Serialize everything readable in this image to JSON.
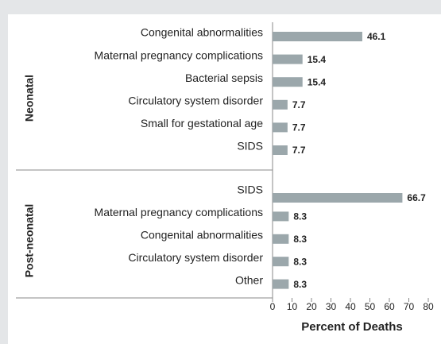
{
  "chart_data": {
    "type": "bar",
    "orientation": "horizontal",
    "groups": [
      {
        "name": "Neonatal",
        "categories": [
          "Congenital abnormalities",
          "Maternal pregnancy complications",
          "Bacterial sepsis",
          "Circulatory system disorder",
          "Small for gestational age",
          "SIDS"
        ],
        "values": [
          46.1,
          15.4,
          15.4,
          7.7,
          7.7,
          7.7
        ]
      },
      {
        "name": "Post-neonatal",
        "categories": [
          "SIDS",
          "Maternal pregnancy complications",
          "Congenital abnormalities",
          "Circulatory system disorder",
          "Other"
        ],
        "values": [
          66.7,
          8.3,
          8.3,
          8.3,
          8.3
        ]
      }
    ],
    "color": "#9ba7ab",
    "xlabel": "Percent of Deaths",
    "xlim": [
      0,
      80
    ],
    "xticks": [
      0,
      10,
      20,
      30,
      40,
      50,
      60,
      70,
      80
    ]
  }
}
